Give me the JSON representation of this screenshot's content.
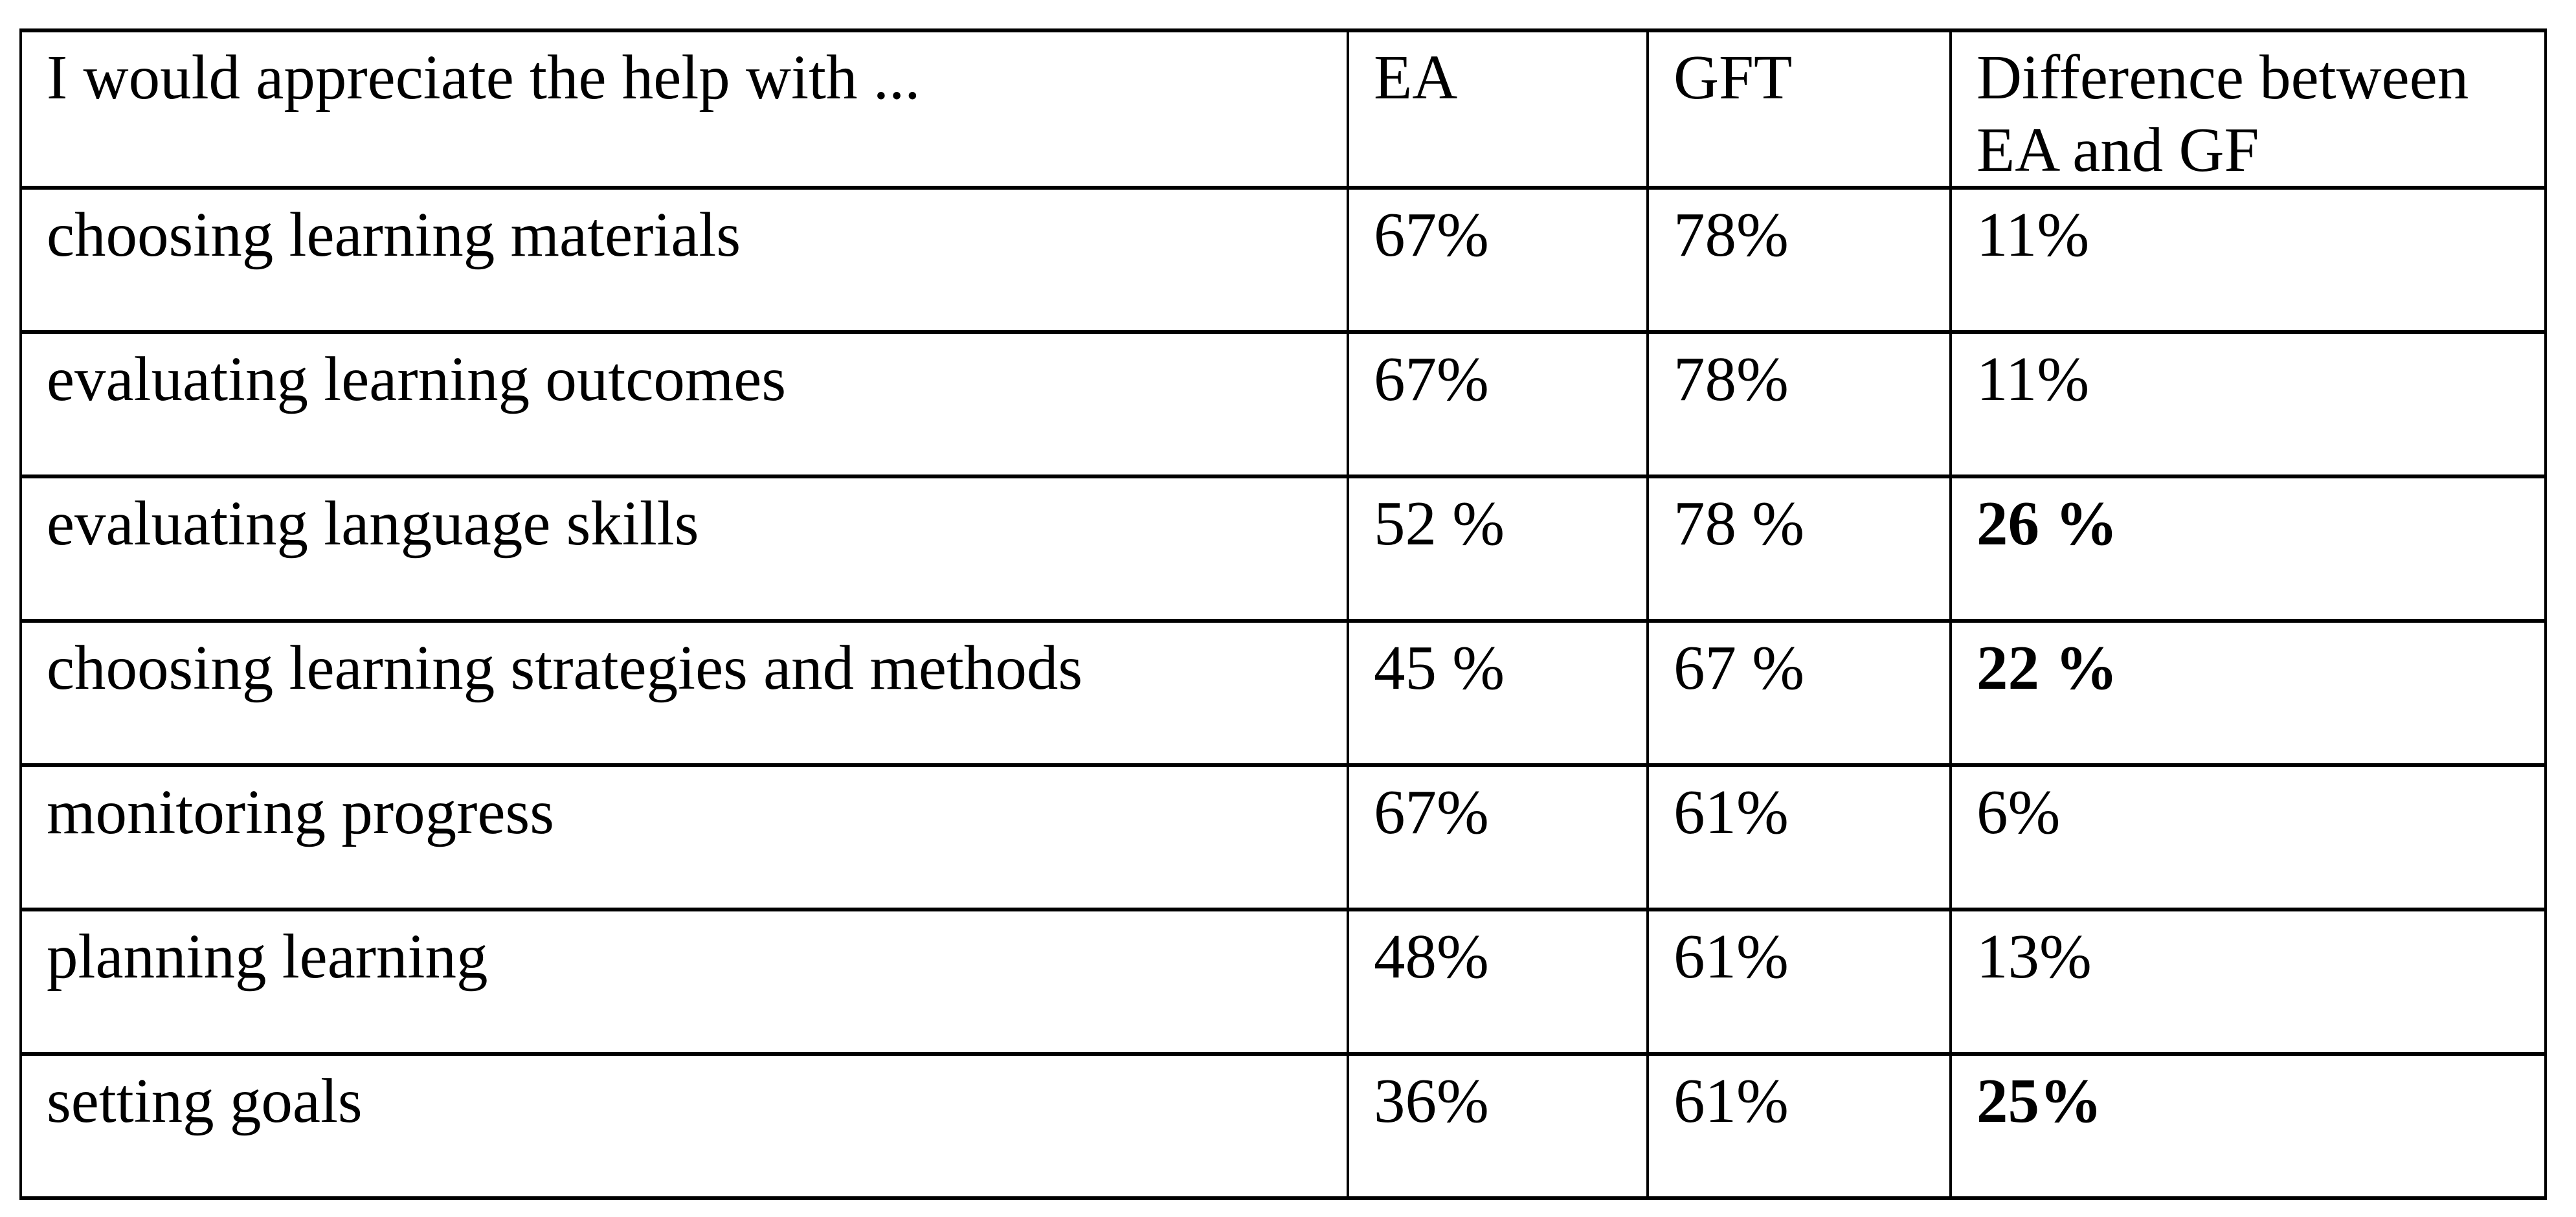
{
  "page": {
    "background_color": "#ffffff",
    "rule_color": "#000000",
    "text_color": "#000000"
  },
  "table": {
    "header": {
      "col1": "I would appreciate the help with ...",
      "col2": "EA",
      "col3": "GFT",
      "col4": "Difference between EA and GF"
    },
    "rows": [
      {
        "label": "choosing learning materials",
        "ea": "67%",
        "gft": "78%",
        "difference": "11%",
        "difference_bold": false
      },
      {
        "label": "evaluating learning outcomes",
        "ea": "67%",
        "gft": "78%",
        "difference": "11%",
        "difference_bold": false
      },
      {
        "label": "evaluating language skills",
        "ea": "52 %",
        "gft": "78 %",
        "difference": "26 %",
        "difference_bold": true
      },
      {
        "label": "choosing learning strategies and methods",
        "ea": "45 %",
        "gft": "67 %",
        "difference": "22 %",
        "difference_bold": true
      },
      {
        "label": "monitoring progress",
        "ea": "67%",
        "gft": "61%",
        "difference": "6%",
        "difference_bold": false
      },
      {
        "label": "planning learning",
        "ea": "48%",
        "gft": "61%",
        "difference": "13%",
        "difference_bold": false
      },
      {
        "label": "setting goals",
        "ea": "36%",
        "gft": "61%",
        "difference": "25%",
        "difference_bold": true
      }
    ]
  }
}
